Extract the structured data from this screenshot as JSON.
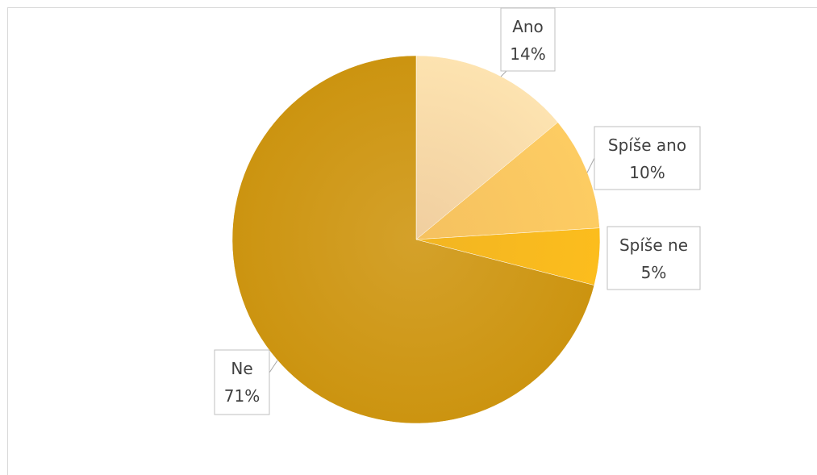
{
  "chart_data": {
    "type": "pie",
    "title": "",
    "legend": "none",
    "slices": [
      {
        "label": "Ano",
        "value": 14,
        "display": "14%",
        "color": "#fde3b0",
        "color_inner": "#f0ce9f"
      },
      {
        "label": "Spíše ano",
        "value": 10,
        "display": "10%",
        "color": "#fdcc62",
        "color_inner": "#f5c160"
      },
      {
        "label": "Spíše ne",
        "value": 5,
        "display": "5%",
        "color": "#fcbd1d",
        "color_inner": "#f2b522"
      },
      {
        "label": "Ne",
        "value": 71,
        "display": "71%",
        "color": "#cc9410",
        "color_inner": "#d4a12a"
      }
    ]
  },
  "colors": {
    "label_text": "#404040",
    "label_border": "#bfbfbf",
    "frame_border": "#d9d9d9",
    "leader_line": "#a6a6a6"
  }
}
